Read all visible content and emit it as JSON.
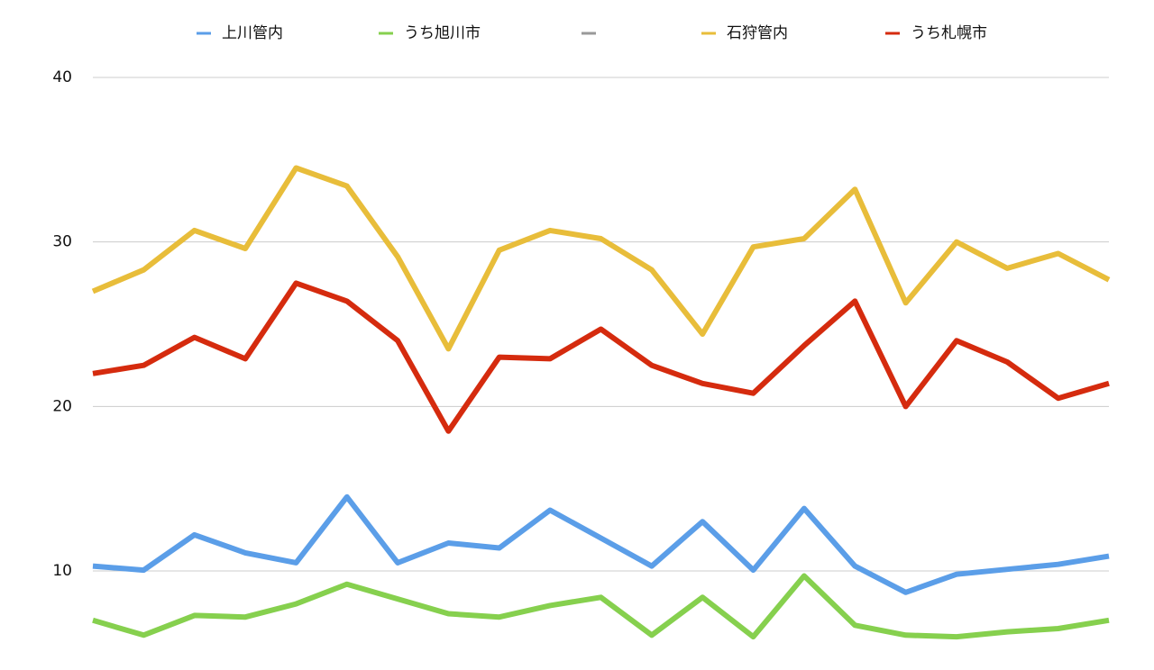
{
  "chart_data": {
    "type": "line",
    "categories": [
      null,
      null,
      null,
      null,
      null,
      null,
      null,
      null,
      null,
      null,
      null,
      null,
      null,
      null,
      null,
      null,
      null,
      null,
      null,
      null,
      null
    ],
    "series": [
      {
        "name": "上川管内",
        "color": "#5b9ee8",
        "values": [
          10.3,
          10.05,
          12.2,
          11.1,
          10.5,
          14.5,
          10.5,
          11.7,
          11.4,
          13.7,
          12.0,
          10.3,
          13.0,
          10.05,
          13.8,
          10.3,
          8.7,
          9.8,
          10.1,
          10.4,
          10.9
        ]
      },
      {
        "name": "うち旭川市",
        "color": "#86d04e",
        "values": [
          7.0,
          6.1,
          7.3,
          7.2,
          8.0,
          9.2,
          8.3,
          7.4,
          7.2,
          7.9,
          8.4,
          6.1,
          8.4,
          6.0,
          9.7,
          6.7,
          6.1,
          6.0,
          6.3,
          6.5,
          7.0
        ]
      },
      {
        "name": null,
        "color": "#999999",
        "values": [
          null,
          null,
          null,
          null,
          null,
          null,
          null,
          null,
          null,
          null,
          null,
          null,
          null,
          null,
          null,
          null,
          null,
          null,
          null,
          null,
          null
        ]
      },
      {
        "name": "石狩管内",
        "color": "#e8bd3a",
        "values": [
          27.0,
          28.3,
          30.7,
          29.6,
          34.5,
          33.4,
          29.1,
          23.5,
          29.5,
          30.7,
          30.2,
          28.3,
          24.4,
          29.7,
          30.2,
          33.2,
          26.3,
          30.0,
          28.4,
          29.3,
          27.7
        ]
      },
      {
        "name": "うち札幌市",
        "color": "#d52b0e",
        "values": [
          22.0,
          22.5,
          24.2,
          22.9,
          27.5,
          26.4,
          24.0,
          18.5,
          23.0,
          22.9,
          24.7,
          22.5,
          21.4,
          20.8,
          23.7,
          26.4,
          20.0,
          24.0,
          22.7,
          20.5,
          21.4
        ]
      }
    ],
    "ylim": [
      4.2,
      40
    ],
    "yticks": [
      10,
      20,
      30,
      40
    ],
    "grid": true,
    "legend": "top"
  }
}
